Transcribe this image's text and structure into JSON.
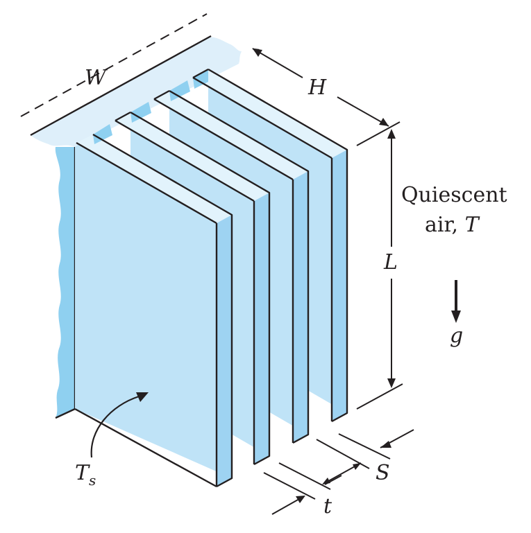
{
  "labels": {
    "W": "W",
    "H": "H",
    "L": "L",
    "S": "S",
    "t": "t",
    "Ts_main": "T",
    "Ts_sub": "s",
    "air_line1": "Quiescent",
    "air_line2_prefix": "air, ",
    "air_line2_var": "T",
    "gravity": "g"
  },
  "colors": {
    "fin_face": "#bfe3f7",
    "fin_edge": "#9ed3f2",
    "fin_top": "#e2f3fc",
    "base_top": "#deeffa",
    "base_side": "#8fd0f0",
    "ink": "#231f20"
  }
}
